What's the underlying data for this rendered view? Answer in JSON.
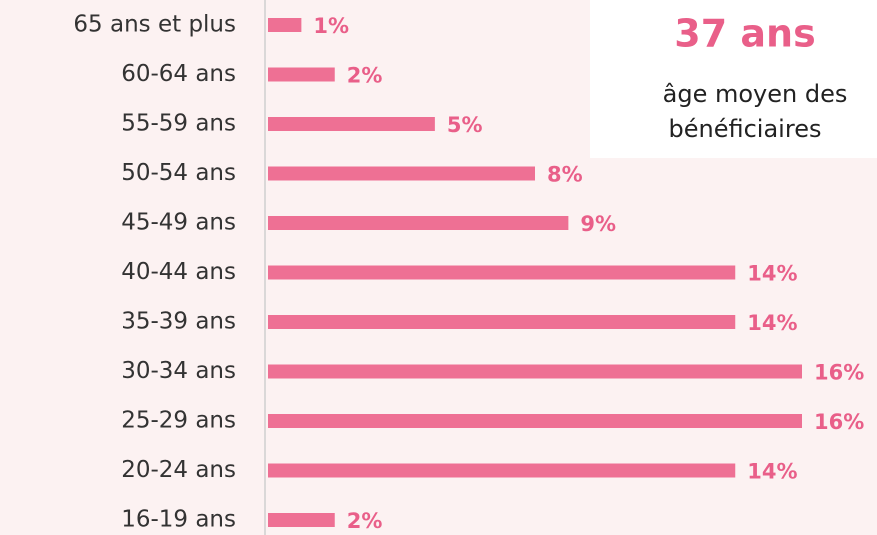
{
  "chart_data": {
    "type": "barh",
    "categories": [
      "65 ans et plus",
      "60-64 ans",
      "55-59 ans",
      "50-54 ans",
      "45-49 ans",
      "40-44 ans",
      "35-39 ans",
      "30-34 ans",
      "25-29 ans",
      "20-24 ans",
      "16-19 ans"
    ],
    "values": [
      1,
      2,
      5,
      8,
      9,
      14,
      14,
      16,
      16,
      14,
      2
    ],
    "value_labels": [
      "1%",
      "2%",
      "5%",
      "8%",
      "9%",
      "14%",
      "14%",
      "16%",
      "16%",
      "14%",
      "2%"
    ],
    "color": "#ee7094",
    "xlim": [
      0,
      16
    ],
    "annotation": {
      "title": "37 ans",
      "lines": [
        "âge moyen des",
        "bénéficiaires"
      ]
    }
  }
}
